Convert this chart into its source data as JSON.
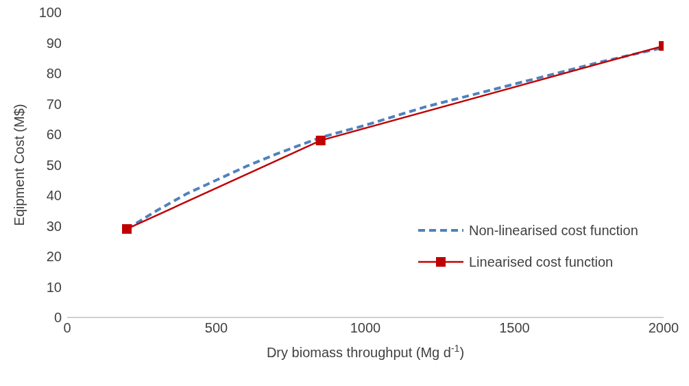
{
  "chart_data": {
    "type": "line",
    "xlabel": "Dry biomass throughput (Mg d$^{-1}$)",
    "ylabel": "Eqipment Cost (M$)",
    "xlim": [
      0,
      2000
    ],
    "xticks": [
      0,
      500,
      1000,
      1500,
      2000
    ],
    "ylim": [
      0,
      100
    ],
    "yticks": [
      0,
      10,
      20,
      30,
      40,
      50,
      60,
      70,
      80,
      90,
      100
    ],
    "grid": false,
    "legend": "right",
    "series": [
      {
        "name": "Non-linearised cost function",
        "color": "#4f81bd",
        "line_style": "dashed",
        "marker": "none",
        "x": [
          200,
          300,
          400,
          500,
          600,
          700,
          850,
          1000,
          1200,
          1400,
          1600,
          1800,
          2000
        ],
        "values": [
          29,
          35,
          40.5,
          45,
          49.5,
          53.5,
          59,
          63,
          69,
          74,
          79,
          84,
          88.5
        ]
      },
      {
        "name": "Linearised cost function",
        "color": "#c00000",
        "line_style": "solid",
        "marker": "square",
        "x": [
          200,
          850,
          2000
        ],
        "values": [
          29,
          58,
          89
        ]
      }
    ]
  }
}
